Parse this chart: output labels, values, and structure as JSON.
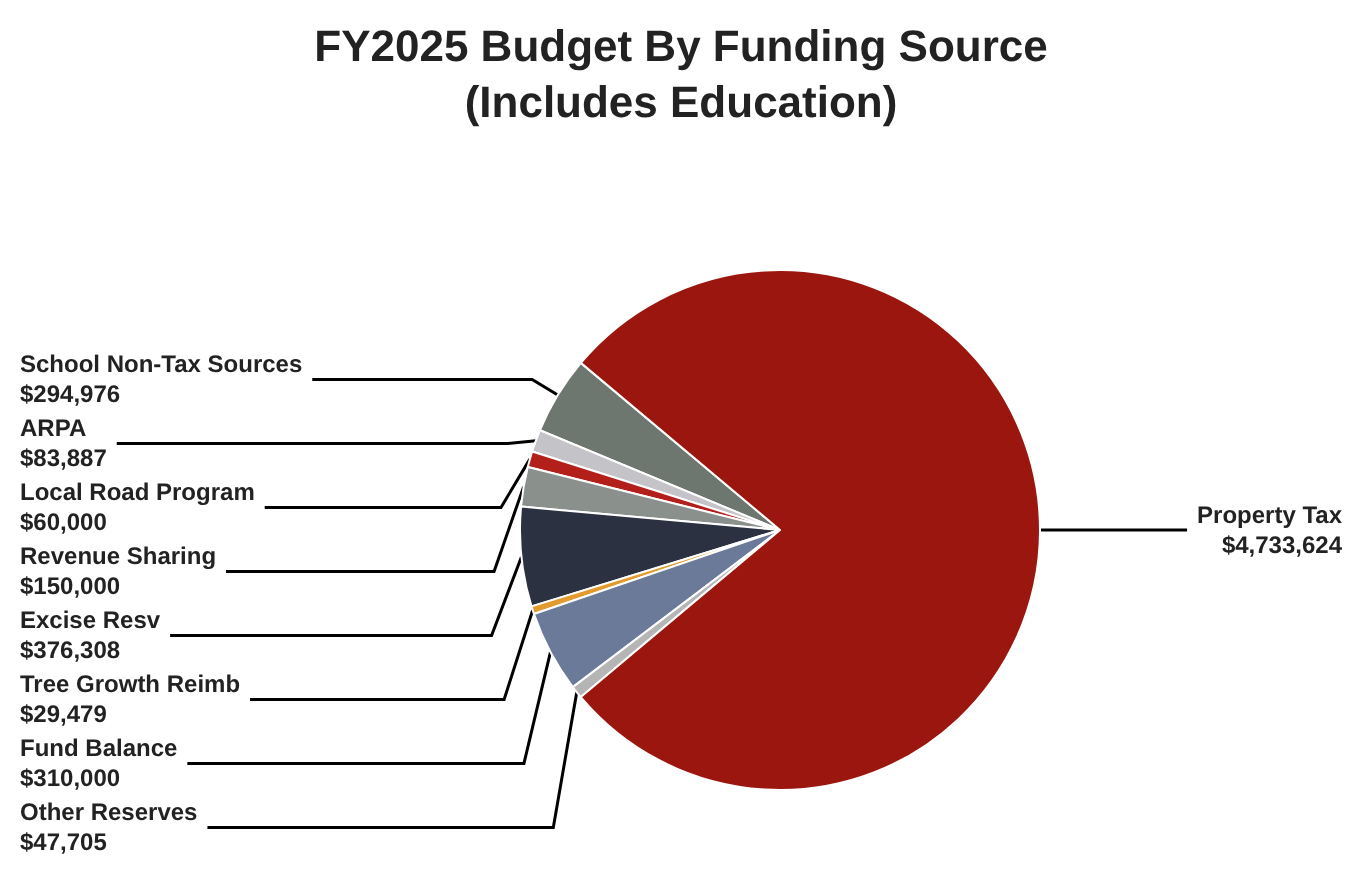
{
  "chart_data": {
    "type": "pie",
    "title": "FY2025 Budget By Funding Source\n(Includes Education)",
    "categories": [
      "School Non-Tax Sources",
      "ARPA",
      "Local Road Program",
      "Revenue Sharing",
      "Excise Resv",
      "Tree Growth Reimb",
      "Fund Balance",
      "Other Reserves",
      "Property Tax"
    ],
    "values": [
      294976,
      83887,
      60000,
      150000,
      376308,
      29479,
      310000,
      47705,
      4733624
    ],
    "value_labels": [
      "$294,976",
      "$83,887",
      "$60,000",
      "$150,000",
      "$376,308",
      "$29,479",
      "$310,000",
      "$47,705",
      "$4,733,624"
    ],
    "colors": [
      "#6e776f",
      "#c3c3c8",
      "#b3201c",
      "#8a908b",
      "#2b3141",
      "#e39a2e",
      "#6b7a99",
      "#b5b5b5",
      "#9a160e"
    ],
    "legend": false
  }
}
